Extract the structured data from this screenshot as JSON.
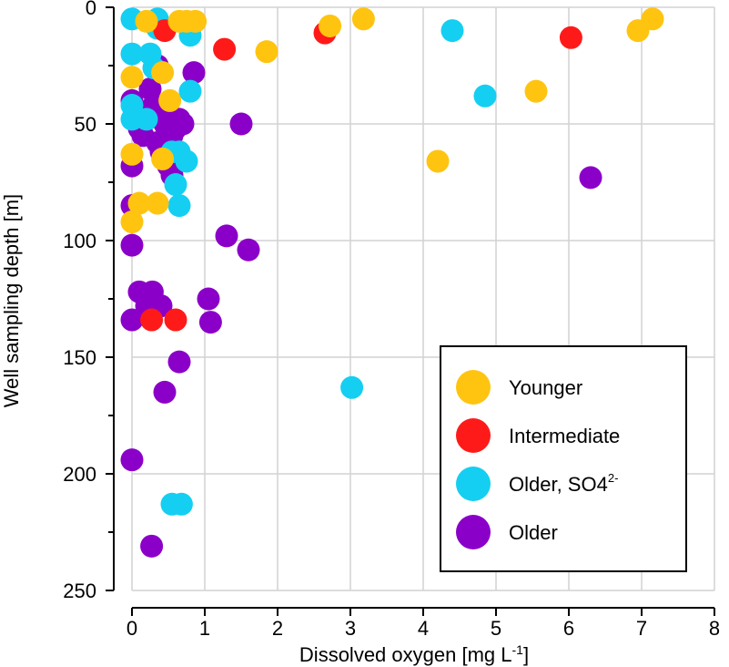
{
  "chart_data": {
    "type": "scatter",
    "title": "",
    "xlabel": "Dissolved oxygen [mg L",
    "xlabel_sup": "-1",
    "xlabel_end": "]",
    "ylabel": "Well sampling depth [m]",
    "xlim": [
      0,
      8
    ],
    "ylim": [
      250,
      0
    ],
    "y_inverted": true,
    "grid": true,
    "x_ticks": [
      "0",
      "1",
      "2",
      "3",
      "4",
      "5",
      "6",
      "7",
      "8"
    ],
    "y_ticks": [
      "0",
      "50",
      "100",
      "150",
      "200",
      "250"
    ],
    "legend_position": "bottom-right",
    "series": [
      {
        "name": "Older",
        "color": "#8b00c8",
        "points": [
          [
            0.0,
            40
          ],
          [
            0.05,
            45
          ],
          [
            0.1,
            52
          ],
          [
            0.15,
            55
          ],
          [
            0.2,
            48
          ],
          [
            0.25,
            35
          ],
          [
            0.3,
            42
          ],
          [
            0.35,
            58
          ],
          [
            0.4,
            62
          ],
          [
            0.45,
            50
          ],
          [
            0.5,
            45
          ],
          [
            0.55,
            55
          ],
          [
            0.6,
            52
          ],
          [
            0.65,
            48
          ],
          [
            0.7,
            50
          ],
          [
            0.5,
            68
          ],
          [
            0.55,
            72
          ],
          [
            0.0,
            68
          ],
          [
            0.35,
            25
          ],
          [
            0.85,
            28
          ],
          [
            0.0,
            85
          ],
          [
            0.0,
            102
          ],
          [
            1.5,
            50
          ],
          [
            1.3,
            98
          ],
          [
            1.6,
            104
          ],
          [
            0.1,
            122
          ],
          [
            0.28,
            122
          ],
          [
            0.2,
            128
          ],
          [
            0.4,
            128
          ],
          [
            0.0,
            134
          ],
          [
            1.05,
            125
          ],
          [
            1.08,
            135
          ],
          [
            0.65,
            152
          ],
          [
            0.45,
            165
          ],
          [
            0.0,
            194
          ],
          [
            0.27,
            231
          ],
          [
            6.3,
            73
          ]
        ]
      },
      {
        "name": "Older, SO4",
        "name_sup": "2-",
        "color": "#14cff2",
        "points": [
          [
            0.0,
            5
          ],
          [
            0.35,
            5
          ],
          [
            0.35,
            9
          ],
          [
            0.8,
            12
          ],
          [
            0.0,
            20
          ],
          [
            0.25,
            20
          ],
          [
            0.3,
            26
          ],
          [
            0.8,
            36
          ],
          [
            0.0,
            42
          ],
          [
            0.0,
            48
          ],
          [
            0.2,
            48
          ],
          [
            0.55,
            62
          ],
          [
            0.65,
            62
          ],
          [
            0.75,
            66
          ],
          [
            0.6,
            76
          ],
          [
            0.65,
            85
          ],
          [
            4.4,
            10
          ],
          [
            4.85,
            38
          ],
          [
            3.02,
            163
          ],
          [
            0.55,
            213
          ],
          [
            0.68,
            213
          ]
        ]
      },
      {
        "name": "Intermediate",
        "color": "#ff1a1a",
        "points": [
          [
            0.45,
            10
          ],
          [
            1.27,
            18
          ],
          [
            2.65,
            11
          ],
          [
            6.03,
            13
          ],
          [
            0.27,
            134
          ],
          [
            0.6,
            134
          ]
        ]
      },
      {
        "name": "Younger",
        "color": "#ffc410",
        "points": [
          [
            0.2,
            6
          ],
          [
            0.65,
            6
          ],
          [
            0.75,
            6
          ],
          [
            0.87,
            6
          ],
          [
            2.72,
            8
          ],
          [
            3.18,
            5
          ],
          [
            1.85,
            19
          ],
          [
            0.42,
            28
          ],
          [
            0.0,
            30
          ],
          [
            0.52,
            40
          ],
          [
            0.0,
            63
          ],
          [
            0.42,
            65
          ],
          [
            0.1,
            84
          ],
          [
            0.35,
            84
          ],
          [
            0.0,
            92
          ],
          [
            4.2,
            66
          ],
          [
            5.55,
            36
          ],
          [
            6.95,
            10
          ],
          [
            7.15,
            5
          ]
        ]
      }
    ],
    "legend_order": [
      "Younger",
      "Intermediate",
      "Older, SO4",
      "Older"
    ]
  }
}
